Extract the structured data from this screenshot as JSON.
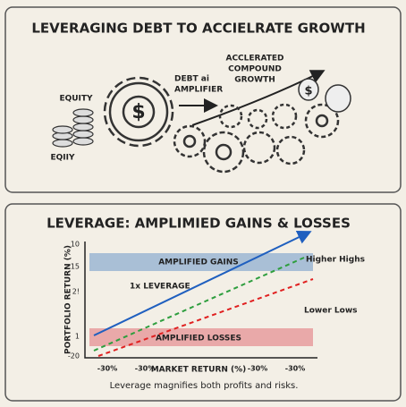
{
  "top": {
    "title": "LEVERAGING DEBT TO ACCIELRATE GROWTH",
    "equity_label": "EQUITY",
    "coins_label": "EQIIY",
    "debt_label": "DEBT ai",
    "amplifier_label": "AMPLIFIER",
    "growth_label": [
      "ACCLERATED",
      "COMPOUND",
      "GROWTH"
    ]
  },
  "bottom": {
    "title": "LEVERAGE: AMPLIMIED GAINS & LOSSES",
    "y_label": "PORTFOLIO RETURN (%)",
    "x_label": "MARKET RETURN (%)",
    "y_tick_labels": [
      "10",
      "15",
      "2!",
      "1",
      "-20"
    ],
    "x_tick_labels": [
      "-30%",
      "-30%",
      "-30%",
      "-30%"
    ],
    "gains_band": "AMPLIFIED GAINS",
    "losses_band": "AMPLIFIED LOSSES",
    "line_1x": "1x LEVERAGE",
    "higher": "Higher Highs",
    "lower": "Lower Lows",
    "caption": "Leverage magnifies both profits and risks."
  }
}
